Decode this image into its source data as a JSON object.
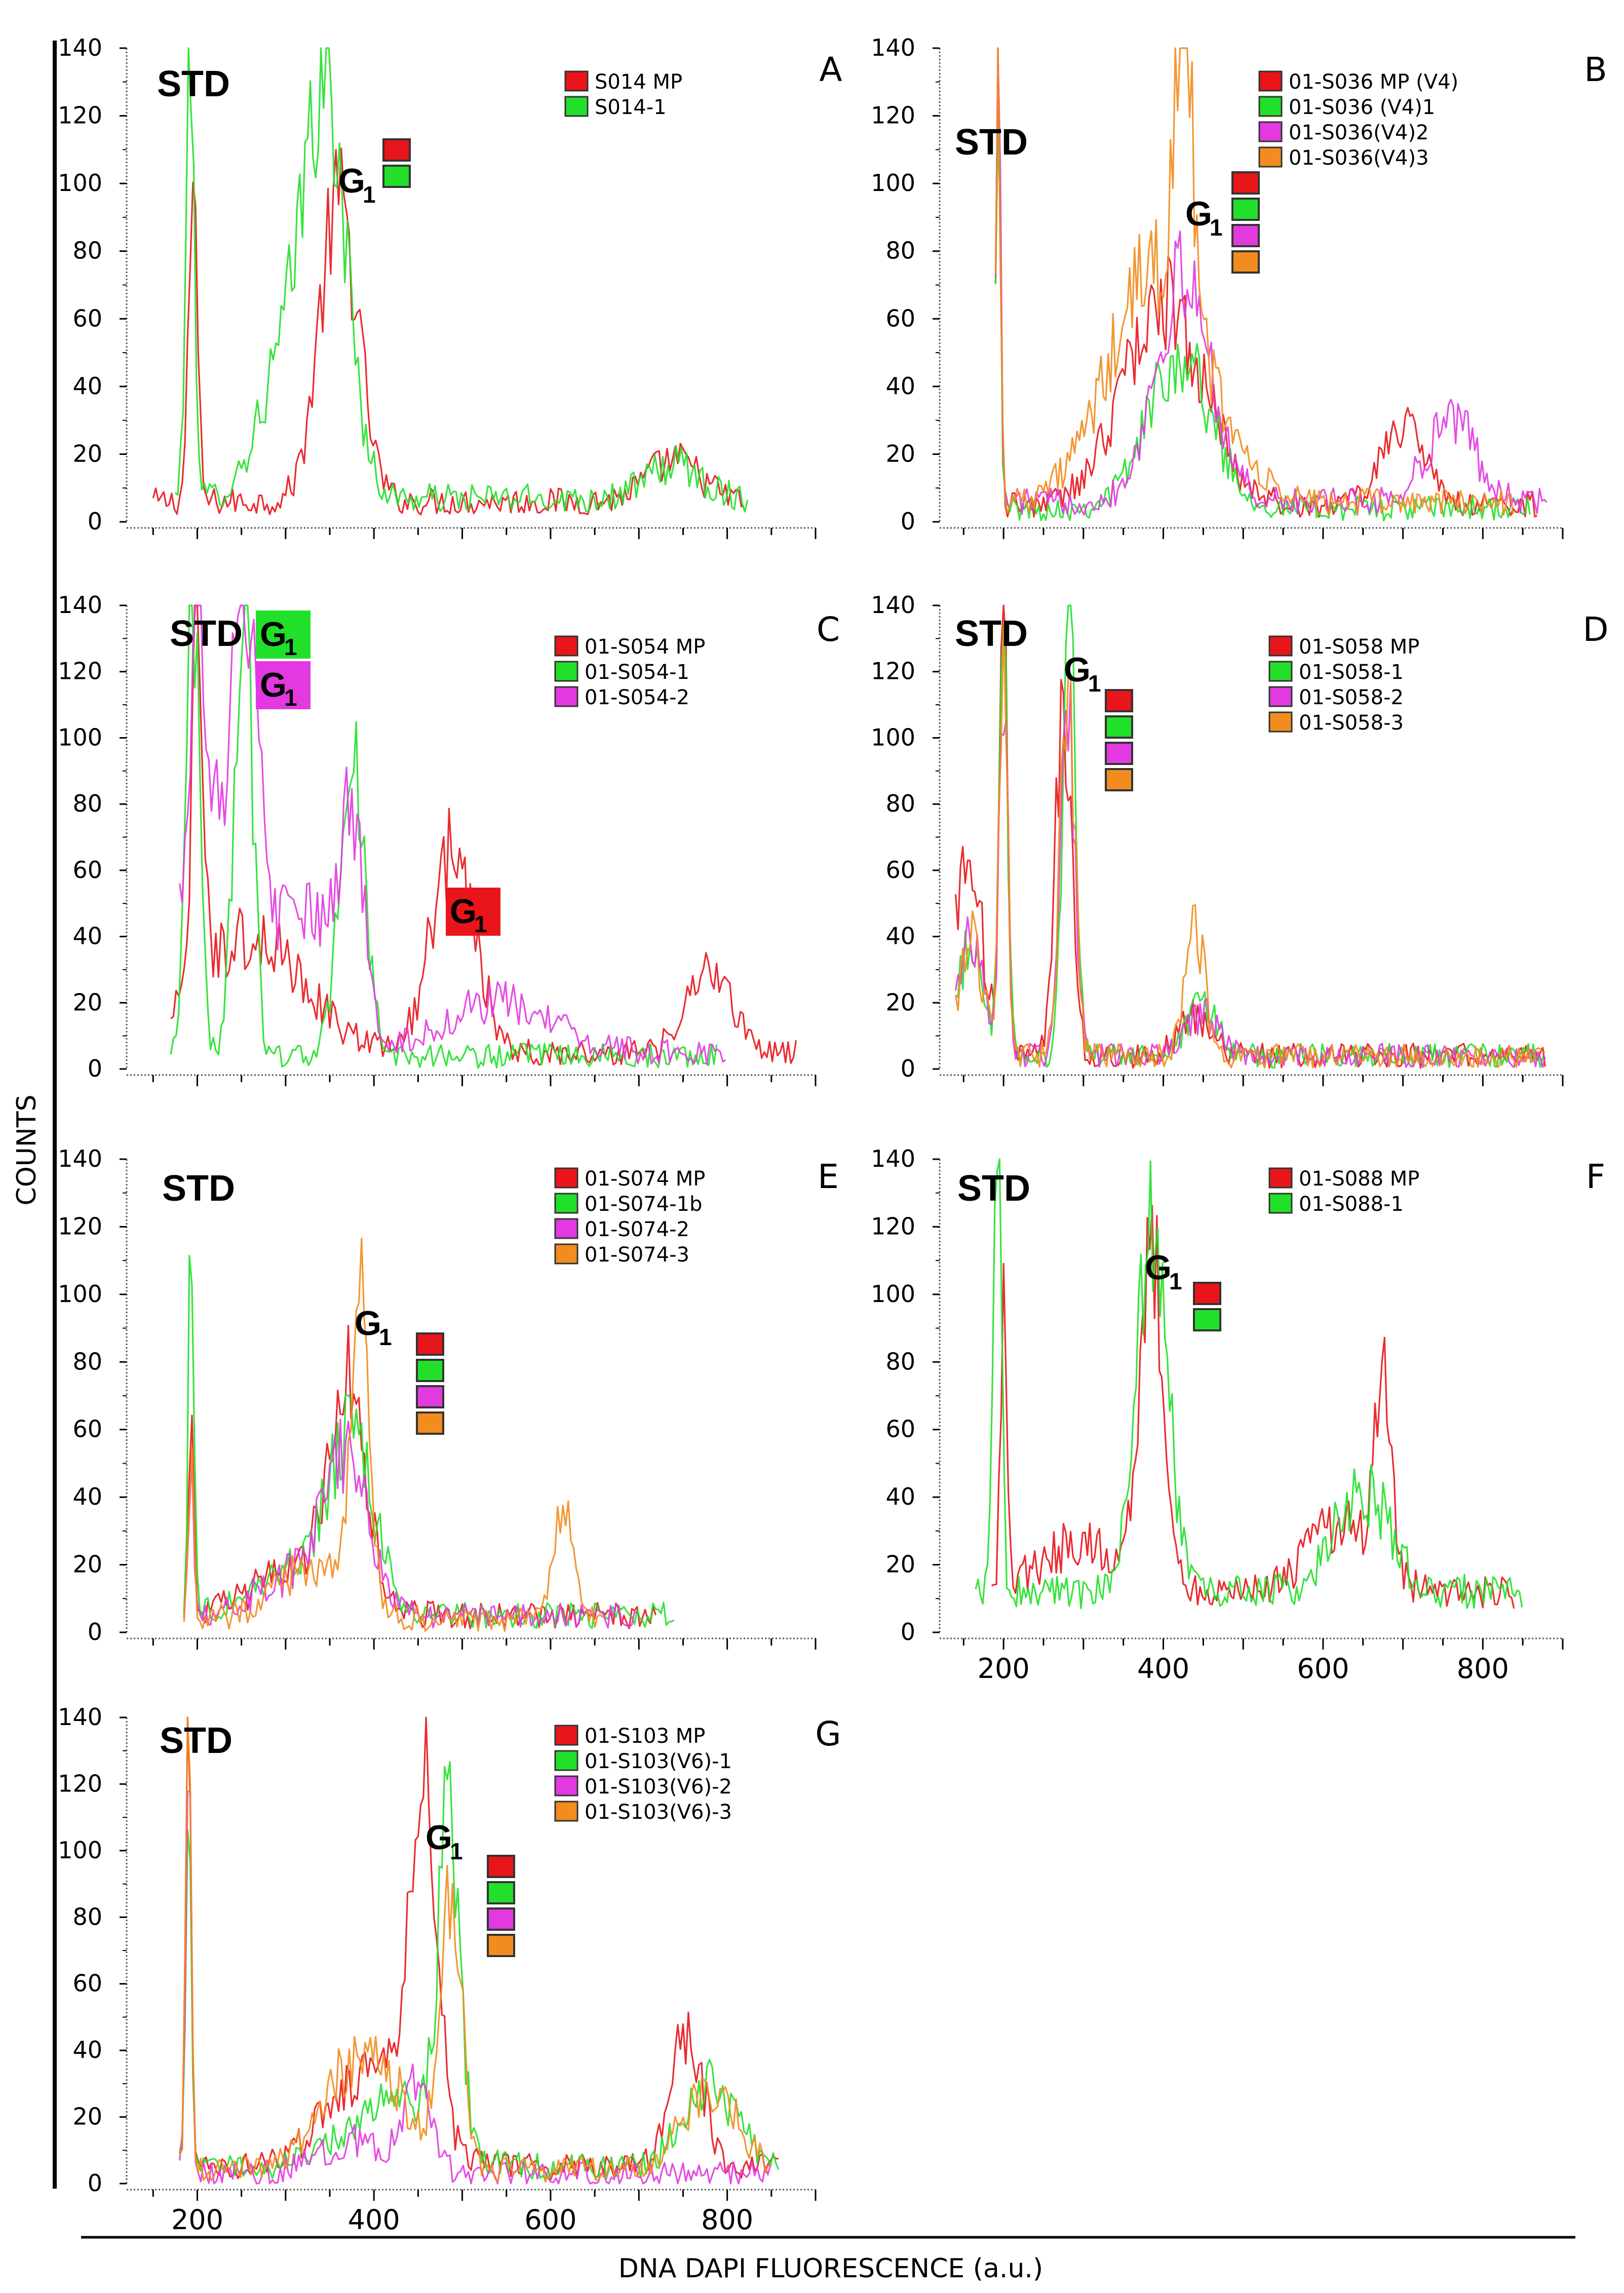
{
  "figure": {
    "y_axis_label": "COUNTS",
    "x_axis_label": "DNA DAPI FLUORESCENCE (a.u.)"
  },
  "series_colors": {
    "MP": "#e8151b",
    "1": "#22e02a",
    "2": "#e23ae0",
    "3": "#f28c1e"
  },
  "chart_data": [
    {
      "panel": "A",
      "type": "line",
      "ylim": [
        0,
        140
      ],
      "xlim": [
        120,
        900
      ],
      "yticks": [
        "0",
        "20",
        "40",
        "60",
        "80",
        "100",
        "120",
        "140"
      ],
      "xticks": [],
      "std_label": "STD",
      "g1_label": "G",
      "g1_sub": "1",
      "legend": [
        "S014 MP",
        "S014-1"
      ],
      "series": [
        {
          "name": "S014 MP",
          "color_key": "MP",
          "peaks": [
            [
              195,
              90,
              5
            ],
            [
              360,
              88,
              22
            ],
            [
              740,
              12,
              30
            ]
          ],
          "baseline": 6,
          "start": 150,
          "end": 820
        },
        {
          "name": "S014-1",
          "color_key": "1",
          "peaks": [
            [
              192,
              125,
              5
            ],
            [
              295,
              35,
              28
            ],
            [
              345,
              118,
              24
            ],
            [
              740,
              10,
              30
            ]
          ],
          "baseline": 7,
          "start": 175,
          "end": 825
        }
      ]
    },
    {
      "panel": "B",
      "type": "line",
      "ylim": [
        0,
        140
      ],
      "xlim": [
        120,
        900
      ],
      "yticks": [
        "0",
        "20",
        "40",
        "60",
        "80",
        "100",
        "120",
        "140"
      ],
      "xticks": [],
      "std_label": "STD",
      "g1_label": "G",
      "g1_sub": "1",
      "legend": [
        "01-S036 MP (V4)",
        "01-S036 (V4)1",
        "01-S036(V4)2",
        "01-S036(V4)3"
      ],
      "series": [
        {
          "name": "01-S036 MP (V4)",
          "color_key": "MP",
          "peaks": [
            [
              193,
              138,
              3
            ],
            [
              400,
              60,
              50
            ],
            [
              700,
              25,
              25
            ]
          ],
          "baseline": 5,
          "start": 190,
          "end": 870
        },
        {
          "name": "01-S036 (V4)1",
          "color_key": "1",
          "peaks": [
            [
              193,
              138,
              3
            ],
            [
              420,
              45,
              40
            ]
          ],
          "baseline": 4,
          "start": 190,
          "end": 860
        },
        {
          "name": "01-S036(V4)2",
          "color_key": "2",
          "peaks": [
            [
              193,
              138,
              3
            ],
            [
              425,
              65,
              35
            ],
            [
              760,
              25,
              30
            ]
          ],
          "baseline": 6,
          "start": 190,
          "end": 880
        },
        {
          "name": "01-S036(V4)3",
          "color_key": "3",
          "peaks": [
            [
              193,
              138,
              3
            ],
            [
              395,
              70,
              60
            ],
            [
              425,
              95,
              10
            ]
          ],
          "baseline": 6,
          "start": 190,
          "end": 840
        }
      ]
    },
    {
      "panel": "C",
      "type": "line",
      "ylim": [
        0,
        140
      ],
      "xlim": [
        120,
        900
      ],
      "yticks": [
        "0",
        "20",
        "40",
        "60",
        "80",
        "100",
        "120",
        "140"
      ],
      "xticks": [],
      "std_label": "STD",
      "g1_boxes": [
        {
          "label": "G",
          "sub": "1",
          "color_key": "1"
        },
        {
          "label": "G",
          "sub": "1",
          "color_key": "2"
        },
        {
          "label": "G",
          "sub": "1",
          "color_key": "MP"
        }
      ],
      "legend": [
        "01-S054 MP",
        "01-S054-1",
        "01-S054-2"
      ],
      "series": [
        {
          "name": "01-S054 MP",
          "color_key": "MP",
          "peaks": [
            [
              200,
              120,
              6
            ],
            [
              260,
              35,
              60
            ],
            [
              490,
              62,
              25
            ],
            [
              780,
              25,
              25
            ]
          ],
          "baseline": 5,
          "start": 170,
          "end": 880
        },
        {
          "name": "01-S054-1",
          "color_key": "1",
          "peaks": [
            [
              195,
              140,
              8
            ],
            [
              252,
              140,
              10
            ],
            [
              375,
              92,
              14
            ]
          ],
          "baseline": 4,
          "start": 170,
          "end": 790
        },
        {
          "name": "01-S054-2",
          "color_key": "2",
          "peaks": [
            [
              200,
              135,
              5
            ],
            [
              210,
              70,
              40
            ],
            [
              255,
              85,
              15
            ],
            [
              320,
              40,
              35
            ],
            [
              375,
              60,
              15
            ],
            [
              540,
              15,
              60
            ]
          ],
          "baseline": 5,
          "start": 180,
          "end": 800
        }
      ]
    },
    {
      "panel": "D",
      "type": "line",
      "ylim": [
        0,
        140
      ],
      "xlim": [
        120,
        900
      ],
      "yticks": [
        "0",
        "20",
        "40",
        "60",
        "80",
        "100",
        "120",
        "140"
      ],
      "xticks": [],
      "std_label": "STD",
      "g1_label": "G",
      "g1_sub": "1",
      "legend": [
        "01-S058 MP",
        "01-S058-1",
        "01-S058-2",
        "01-S058-3"
      ],
      "series": [
        {
          "name": "01-S058 MP",
          "color_key": "MP",
          "peaks": [
            [
              155,
              60,
              18
            ],
            [
              200,
              128,
              5
            ],
            [
              275,
              105,
              10
            ],
            [
              440,
              12,
              20
            ]
          ],
          "baseline": 4,
          "start": 140,
          "end": 880
        },
        {
          "name": "01-S058-1",
          "color_key": "1",
          "peaks": [
            [
              160,
              35,
              15
            ],
            [
              200,
              132,
              5
            ],
            [
              282,
              128,
              8
            ],
            [
              450,
              15,
              18
            ]
          ],
          "baseline": 4,
          "start": 140,
          "end": 880
        },
        {
          "name": "01-S058-2",
          "color_key": "2",
          "peaks": [
            [
              160,
              38,
              15
            ],
            [
              200,
              120,
              5
            ],
            [
              280,
              110,
              9
            ],
            [
              450,
              12,
              20
            ]
          ],
          "baseline": 4,
          "start": 140,
          "end": 880
        },
        {
          "name": "01-S058-3",
          "color_key": "3",
          "peaks": [
            [
              160,
              35,
              15
            ],
            [
              200,
              125,
              5
            ],
            [
              280,
              112,
              9
            ],
            [
              440,
              38,
              12
            ]
          ],
          "baseline": 4,
          "start": 140,
          "end": 880
        }
      ]
    },
    {
      "panel": "E",
      "type": "line",
      "ylim": [
        0,
        140
      ],
      "xlim": [
        120,
        900
      ],
      "yticks": [
        "0",
        "20",
        "40",
        "60",
        "80",
        "100",
        "120",
        "140"
      ],
      "xticks": [],
      "std_label": "STD",
      "g1_label": "G",
      "g1_sub": "1",
      "legend": [
        "01-S074 MP",
        "01-S074-1b",
        "01-S074-2",
        "01-S074-3"
      ],
      "series": [
        {
          "name": "01-S074 MP",
          "color_key": "MP",
          "peaks": [
            [
              193,
              55,
              3
            ],
            [
              370,
              62,
              20
            ],
            [
              320,
              15,
              50
            ]
          ],
          "baseline": 5,
          "start": 185,
          "end": 720
        },
        {
          "name": "01-S074-1b",
          "color_key": "1",
          "peaks": [
            [
              193,
              122,
              3
            ],
            [
              375,
              45,
              25
            ],
            [
              320,
              15,
              50
            ]
          ],
          "baseline": 5,
          "start": 185,
          "end": 740
        },
        {
          "name": "01-S074-2",
          "color_key": "2",
          "peaks": [
            [
              193,
              50,
              3
            ],
            [
              370,
              40,
              25
            ],
            [
              320,
              12,
              50
            ]
          ],
          "baseline": 5,
          "start": 185,
          "end": 700
        },
        {
          "name": "01-S074-3",
          "color_key": "3",
          "peaks": [
            [
              193,
              45,
              3
            ],
            [
              385,
              92,
              10
            ],
            [
              330,
              15,
              40
            ],
            [
              615,
              38,
              10
            ]
          ],
          "baseline": 4,
          "start": 185,
          "end": 660
        }
      ]
    },
    {
      "panel": "F",
      "type": "line",
      "ylim": [
        0,
        140
      ],
      "xlim": [
        120,
        900
      ],
      "yticks": [
        "0",
        "20",
        "40",
        "60",
        "80",
        "100",
        "120",
        "140"
      ],
      "xticks": [
        "200",
        "400",
        "600",
        "800"
      ],
      "std_label": "STD",
      "g1_label": "G",
      "g1_sub": "1",
      "legend": [
        "01-S088 MP",
        "01-S088-1"
      ],
      "series": [
        {
          "name": "01-S088 MP",
          "color_key": "MP",
          "peaks": [
            [
              200,
              80,
              4
            ],
            [
              385,
              100,
              15
            ],
            [
              300,
              15,
              50
            ],
            [
              675,
              55,
              10
            ],
            [
              620,
              20,
              40
            ]
          ],
          "baseline": 12,
          "start": 185,
          "end": 840
        },
        {
          "name": "01-S088-1",
          "color_key": "1",
          "peaks": [
            [
              192,
              130,
              5
            ],
            [
              385,
              110,
              20
            ],
            [
              650,
              30,
              35
            ]
          ],
          "baseline": 12,
          "start": 165,
          "end": 850
        }
      ]
    },
    {
      "panel": "G",
      "type": "line",
      "ylim": [
        0,
        140
      ],
      "xlim": [
        120,
        900
      ],
      "yticks": [
        "0",
        "20",
        "40",
        "60",
        "80",
        "100",
        "120",
        "140"
      ],
      "xticks": [
        "200",
        "400",
        "600",
        "800"
      ],
      "std_label": "STD",
      "g1_label": "G",
      "g1_sub": "1",
      "legend": [
        "01-S103 MP",
        "01-S103(V6)-1",
        "01-S103(V6)-2",
        "01-S103(V6)-3"
      ],
      "series": [
        {
          "name": "01-S103 MP",
          "color_key": "MP",
          "peaks": [
            [
              190,
              130,
              3
            ],
            [
              455,
              108,
              15
            ],
            [
              400,
              30,
              50
            ],
            [
              755,
              40,
              18
            ]
          ],
          "baseline": 5,
          "start": 180,
          "end": 860
        },
        {
          "name": "01-S103(V6)-1",
          "color_key": "1",
          "peaks": [
            [
              190,
              125,
              3
            ],
            [
              485,
              100,
              12
            ],
            [
              420,
              20,
              50
            ],
            [
              780,
              25,
              30
            ]
          ],
          "baseline": 5,
          "start": 180,
          "end": 860
        },
        {
          "name": "01-S103(V6)-2",
          "color_key": "2",
          "peaks": [
            [
              190,
              120,
              3
            ],
            [
              450,
              25,
              15
            ],
            [
              380,
              10,
              40
            ]
          ],
          "baseline": 3,
          "start": 180,
          "end": 850
        },
        {
          "name": "01-S103(V6)-3",
          "color_key": "3",
          "peaks": [
            [
              190,
              138,
              3
            ],
            [
              488,
              78,
              12
            ],
            [
              390,
              35,
              45
            ],
            [
              780,
              25,
              30
            ]
          ],
          "baseline": 4,
          "start": 180,
          "end": 850
        }
      ]
    }
  ]
}
